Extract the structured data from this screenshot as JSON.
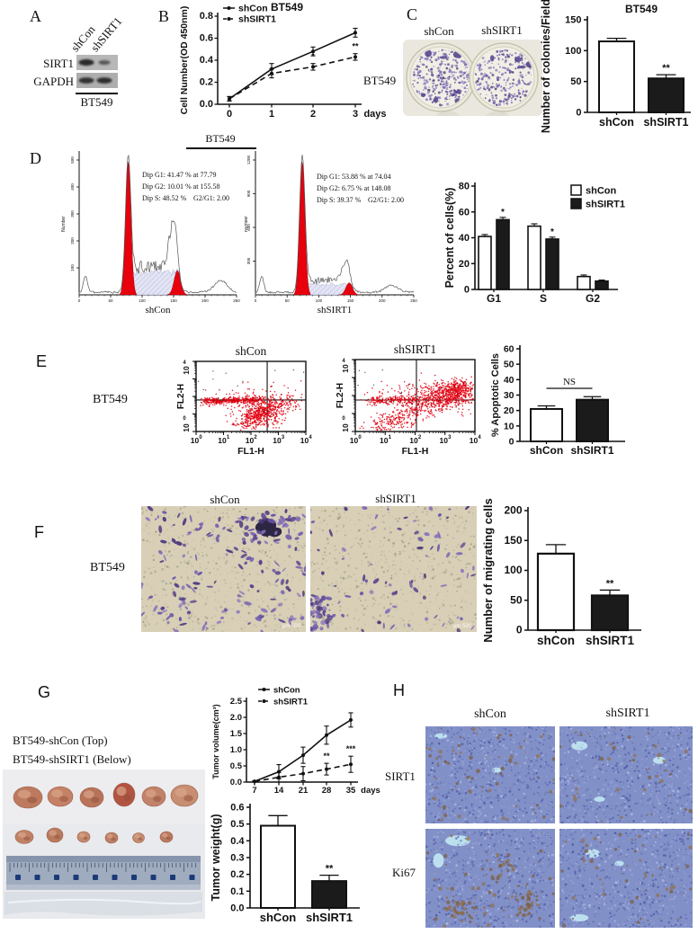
{
  "panels": {
    "a": {
      "label": "A",
      "lanes": [
        "shCon",
        "shSIRT1"
      ],
      "proteins": [
        "SIRT1",
        "GAPDH"
      ],
      "cell_line": "BT549"
    },
    "b": {
      "label": "B"
    },
    "c": {
      "label": "C",
      "well_labels": [
        "shCon",
        "shSIRT1"
      ],
      "cell_line": "BT549"
    },
    "d": {
      "label": "D",
      "header": "BT549"
    },
    "e": {
      "label": "E",
      "cell_line": "BT549"
    },
    "f": {
      "label": "F",
      "cell_line": "BT549",
      "image_labels": [
        "shCon",
        "shSIRT1"
      ],
      "scale_text": "μm 500"
    },
    "g": {
      "label": "G",
      "caption_top": "BT549-shCon (Top)",
      "caption_bottom": "BT549-shSIRT1 (Below)"
    },
    "h": {
      "label": "H",
      "col_labels": [
        "shCon",
        "shSIRT1"
      ],
      "row_labels": [
        "SIRT1",
        "Ki67"
      ]
    }
  },
  "colors": {
    "bar_fill_control": "#ffffff",
    "bar_fill_knockdown": "#1b1b1b",
    "flow_red": "#e8000d",
    "stain_purple": "#7b68b5",
    "ihc_blue": "#8290c8"
  },
  "chart_data": [
    {
      "id": "b_growth",
      "type": "line",
      "title": "BT549",
      "ylabel": "Cell Number(OD 450nm)",
      "xlabel": "days",
      "x": [
        0,
        1,
        2,
        3
      ],
      "ylim": [
        0,
        0.8
      ],
      "yticks": [
        0,
        0.2,
        0.4,
        0.6,
        0.8
      ],
      "series": [
        {
          "name": "shCon",
          "dash": false,
          "values": [
            0.05,
            0.32,
            0.48,
            0.65
          ],
          "errors": [
            0.02,
            0.05,
            0.04,
            0.04
          ]
        },
        {
          "name": "shSIRT1",
          "dash": true,
          "values": [
            0.05,
            0.28,
            0.34,
            0.43
          ],
          "errors": [
            0.02,
            0.04,
            0.03,
            0.03
          ]
        }
      ],
      "annotations": [
        {
          "x": 2,
          "text": "*"
        },
        {
          "x": 3,
          "text": "**"
        }
      ]
    },
    {
      "id": "c_colonies",
      "type": "bar",
      "title": "BT549",
      "ylabel": "Number of colonies/Field",
      "categories": [
        "shCon",
        "shSIRT1"
      ],
      "values": [
        115,
        55
      ],
      "errors": [
        5,
        6
      ],
      "fills": [
        "#ffffff",
        "#1b1b1b"
      ],
      "annotations": [
        "",
        "**"
      ],
      "ylim": [
        0,
        150
      ],
      "yticks": [
        0,
        50,
        100,
        150
      ]
    },
    {
      "id": "d_hist_shcon",
      "type": "flow-histogram",
      "stats": [
        "Dip G1: 41.47 % at 77.79",
        "Dip G2: 10.01 % at 155.58",
        "Dip S: 48.52 %",
        "G2/G1: 2.00"
      ],
      "xlabel": "shCon",
      "ylabel": "Number",
      "xlim": [
        0,
        250
      ],
      "xticks": [
        0,
        50,
        100,
        150,
        200,
        250
      ],
      "ytick_labels": [
        "100",
        "200",
        "300",
        "400",
        "500"
      ],
      "g1_peak": 78,
      "g2_peak": 156,
      "s_h": 0.17,
      "g2_h": 0.18,
      "o2_pos": 150,
      "o2_h": 0.36,
      "ag_pos": 225,
      "ag_h": 0.09,
      "seed": 3
    },
    {
      "id": "d_hist_shsirt1",
      "type": "flow-histogram",
      "stats": [
        "Dip G1: 53.88 % at 74.04",
        "Dip G2: 6.75 % at 148.08",
        "Dip S: 39.37 %",
        "G2/G1: 2.00"
      ],
      "xlabel": "shSIRT1",
      "ylabel": "Number",
      "xlim": [
        0,
        250
      ],
      "xticks": [
        0,
        50,
        100,
        150,
        200,
        250
      ],
      "ytick_labels": [
        "300",
        "600",
        "900",
        "1200"
      ],
      "g1_peak": 74,
      "g2_peak": 148,
      "s_h": 0.08,
      "g2_h": 0.09,
      "o2_pos": 144,
      "o2_h": 0.16,
      "ag_pos": 215,
      "ag_h": 0.05,
      "seed": 8
    },
    {
      "id": "d_cellcycle",
      "type": "grouped-bar",
      "ylabel": "Percent of cells(%)",
      "categories": [
        "G1",
        "S",
        "G2"
      ],
      "ylim": [
        0,
        80
      ],
      "yticks": [
        0,
        20,
        40,
        60,
        80
      ],
      "series": [
        {
          "name": "shCon",
          "fill": "#ffffff",
          "values": [
            41,
            49,
            10
          ],
          "errors": [
            1.5,
            1.8,
            1.2
          ],
          "annotations": [
            "",
            "",
            ""
          ]
        },
        {
          "name": "shSIRT1",
          "fill": "#1b1b1b",
          "values": [
            54,
            39,
            6.5
          ],
          "errors": [
            1.8,
            1.5,
            0.8
          ],
          "annotations": [
            "*",
            "*",
            ""
          ]
        }
      ]
    },
    {
      "id": "e_facs_shcon",
      "type": "scatter-flow",
      "title": "shCon",
      "xlabel": "FL1-H",
      "ylabel": "FL2-H",
      "axis_decades": [
        "0",
        "1",
        "2",
        "3",
        "4"
      ],
      "qx": 0.648,
      "qy": 0.55,
      "seed": 7,
      "clusters": [
        {
          "band": true,
          "x0": 0.06,
          "y0": 0.57,
          "x1": 0.6,
          "y1": 0.55,
          "sp": 0.025,
          "n": 380
        },
        {
          "cx": 0.6,
          "cy": 0.73,
          "sx": 0.1,
          "sy": 0.1,
          "n": 380
        },
        {
          "band": true,
          "x0": 0.42,
          "y0": 0.93,
          "x1": 0.73,
          "y1": 0.62,
          "sp": 0.05,
          "n": 220
        },
        {
          "cx": 0.55,
          "cy": 0.45,
          "sx": 0.2,
          "sy": 0.07,
          "n": 45
        },
        {
          "cx": 0.8,
          "cy": 0.6,
          "sx": 0.07,
          "sy": 0.06,
          "n": 80
        }
      ]
    },
    {
      "id": "e_facs_shsirt1",
      "type": "scatter-flow",
      "title": "shSIRT1",
      "xlabel": "FL1-H",
      "ylabel": "FL2-H",
      "axis_decades": [
        "0",
        "1",
        "2",
        "3",
        "4"
      ],
      "qx": 0.511,
      "qy": 0.5625,
      "seed": 13,
      "clusters": [
        {
          "band": true,
          "x0": 0.1,
          "y0": 0.58,
          "x1": 0.55,
          "y1": 0.55,
          "sp": 0.03,
          "n": 220
        },
        {
          "band": true,
          "x0": 0.2,
          "y0": 0.93,
          "x1": 0.93,
          "y1": 0.4,
          "sp": 0.07,
          "n": 520
        },
        {
          "cx": 0.76,
          "cy": 0.5,
          "sx": 0.12,
          "sy": 0.1,
          "n": 420
        },
        {
          "cx": 0.86,
          "cy": 0.4,
          "sx": 0.06,
          "sy": 0.06,
          "n": 160
        },
        {
          "cx": 0.5,
          "cy": 0.42,
          "sx": 0.2,
          "sy": 0.06,
          "n": 60
        }
      ]
    },
    {
      "id": "e_apoptosis",
      "type": "bar",
      "ylabel": "% Apoptotic Cells",
      "categories": [
        "shCon",
        "shSIRT1"
      ],
      "values": [
        21,
        27
      ],
      "errors": [
        2,
        2
      ],
      "fills": [
        "#ffffff",
        "#1b1b1b"
      ],
      "annotations": [
        "",
        ""
      ],
      "bracket": "NS",
      "ylim": [
        0,
        60
      ],
      "yticks": [
        0,
        10,
        20,
        30,
        40,
        50,
        60
      ]
    },
    {
      "id": "f_migration",
      "type": "bar",
      "ylabel": "Number of migrating cells",
      "categories": [
        "shCon",
        "shSIRT1"
      ],
      "values": [
        128,
        58
      ],
      "errors": [
        15,
        9
      ],
      "fills": [
        "#ffffff",
        "#1b1b1b"
      ],
      "annotations": [
        "",
        "**"
      ],
      "ylim": [
        0,
        200
      ],
      "yticks": [
        0,
        50,
        100,
        150,
        200
      ]
    },
    {
      "id": "g_volume",
      "type": "line",
      "ylabel": "Tumor volume(cm³)",
      "xlabel": "days",
      "x": [
        7,
        14,
        21,
        28,
        35
      ],
      "ylim": [
        0,
        2.5
      ],
      "yticks": [
        0,
        0.5,
        1,
        1.5,
        2,
        2.5
      ],
      "series": [
        {
          "name": "shCon",
          "dash": false,
          "values": [
            0.02,
            0.32,
            0.83,
            1.45,
            1.92
          ],
          "errors": [
            0.02,
            0.22,
            0.25,
            0.28,
            0.22
          ]
        },
        {
          "name": "shSIRT1",
          "dash": true,
          "values": [
            0.02,
            0.15,
            0.26,
            0.4,
            0.55
          ],
          "errors": [
            0.02,
            0.15,
            0.22,
            0.18,
            0.25
          ]
        }
      ],
      "annotations": [
        {
          "x": 28,
          "text": "**"
        },
        {
          "x": 35,
          "text": "***"
        }
      ]
    },
    {
      "id": "g_weight",
      "type": "bar",
      "ylabel": "Tumor weight(g)",
      "categories": [
        "shCon",
        "shSIRT1"
      ],
      "values": [
        0.49,
        0.16
      ],
      "errors": [
        0.06,
        0.035
      ],
      "fills": [
        "#ffffff",
        "#1b1b1b"
      ],
      "annotations": [
        "",
        "**"
      ],
      "ylim": [
        0,
        0.6
      ],
      "yticks": [
        0,
        0.1,
        0.2,
        0.3,
        0.4,
        0.5,
        0.6
      ]
    }
  ]
}
